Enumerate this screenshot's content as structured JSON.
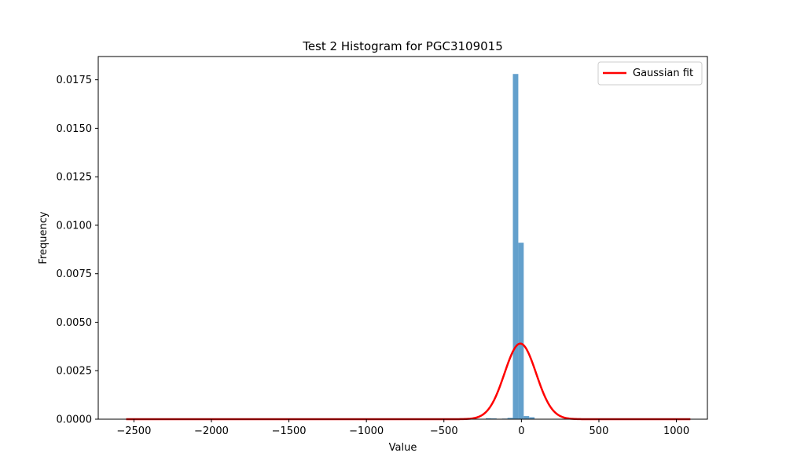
{
  "chart_data": {
    "type": "histogram",
    "title": "Test 2 Histogram for PGC3109015",
    "xlabel": "Value",
    "ylabel": "Frequency",
    "xlim": [
      -2730,
      1200
    ],
    "ylim": [
      0,
      0.0187
    ],
    "xticks": [
      -2500,
      -2000,
      -1500,
      -1000,
      -500,
      0,
      500,
      1000
    ],
    "xtick_labels": [
      "−2500",
      "−2000",
      "−1500",
      "−1000",
      "−500",
      "0",
      "500",
      "1000"
    ],
    "yticks": [
      0,
      0.0025,
      0.005,
      0.0075,
      0.01,
      0.0125,
      0.015,
      0.0175
    ],
    "ytick_labels": [
      "0.0000",
      "0.0025",
      "0.0050",
      "0.0075",
      "0.0100",
      "0.0125",
      "0.0150",
      "0.0175"
    ],
    "bar_color": "#5b9bc9",
    "bars": [
      {
        "x0": -230,
        "x1": -195,
        "value": 5e-05
      },
      {
        "x0": -195,
        "x1": -160,
        "value": 4e-05
      },
      {
        "x0": -125,
        "x1": -90,
        "value": 3e-05
      },
      {
        "x0": -90,
        "x1": -55,
        "value": 7e-05
      },
      {
        "x0": -55,
        "x1": -20,
        "value": 0.0178
      },
      {
        "x0": -20,
        "x1": 15,
        "value": 0.0091
      },
      {
        "x0": 15,
        "x1": 50,
        "value": 0.00016
      },
      {
        "x0": 50,
        "x1": 85,
        "value": 0.0001
      }
    ],
    "series": [
      {
        "name": "Gaussian fit",
        "color": "#ff0000",
        "mu": -7,
        "sigma": 102,
        "peak": 0.0039,
        "x_range": [
          -2550,
          1090
        ]
      }
    ],
    "legend": {
      "position": "top-right"
    }
  }
}
